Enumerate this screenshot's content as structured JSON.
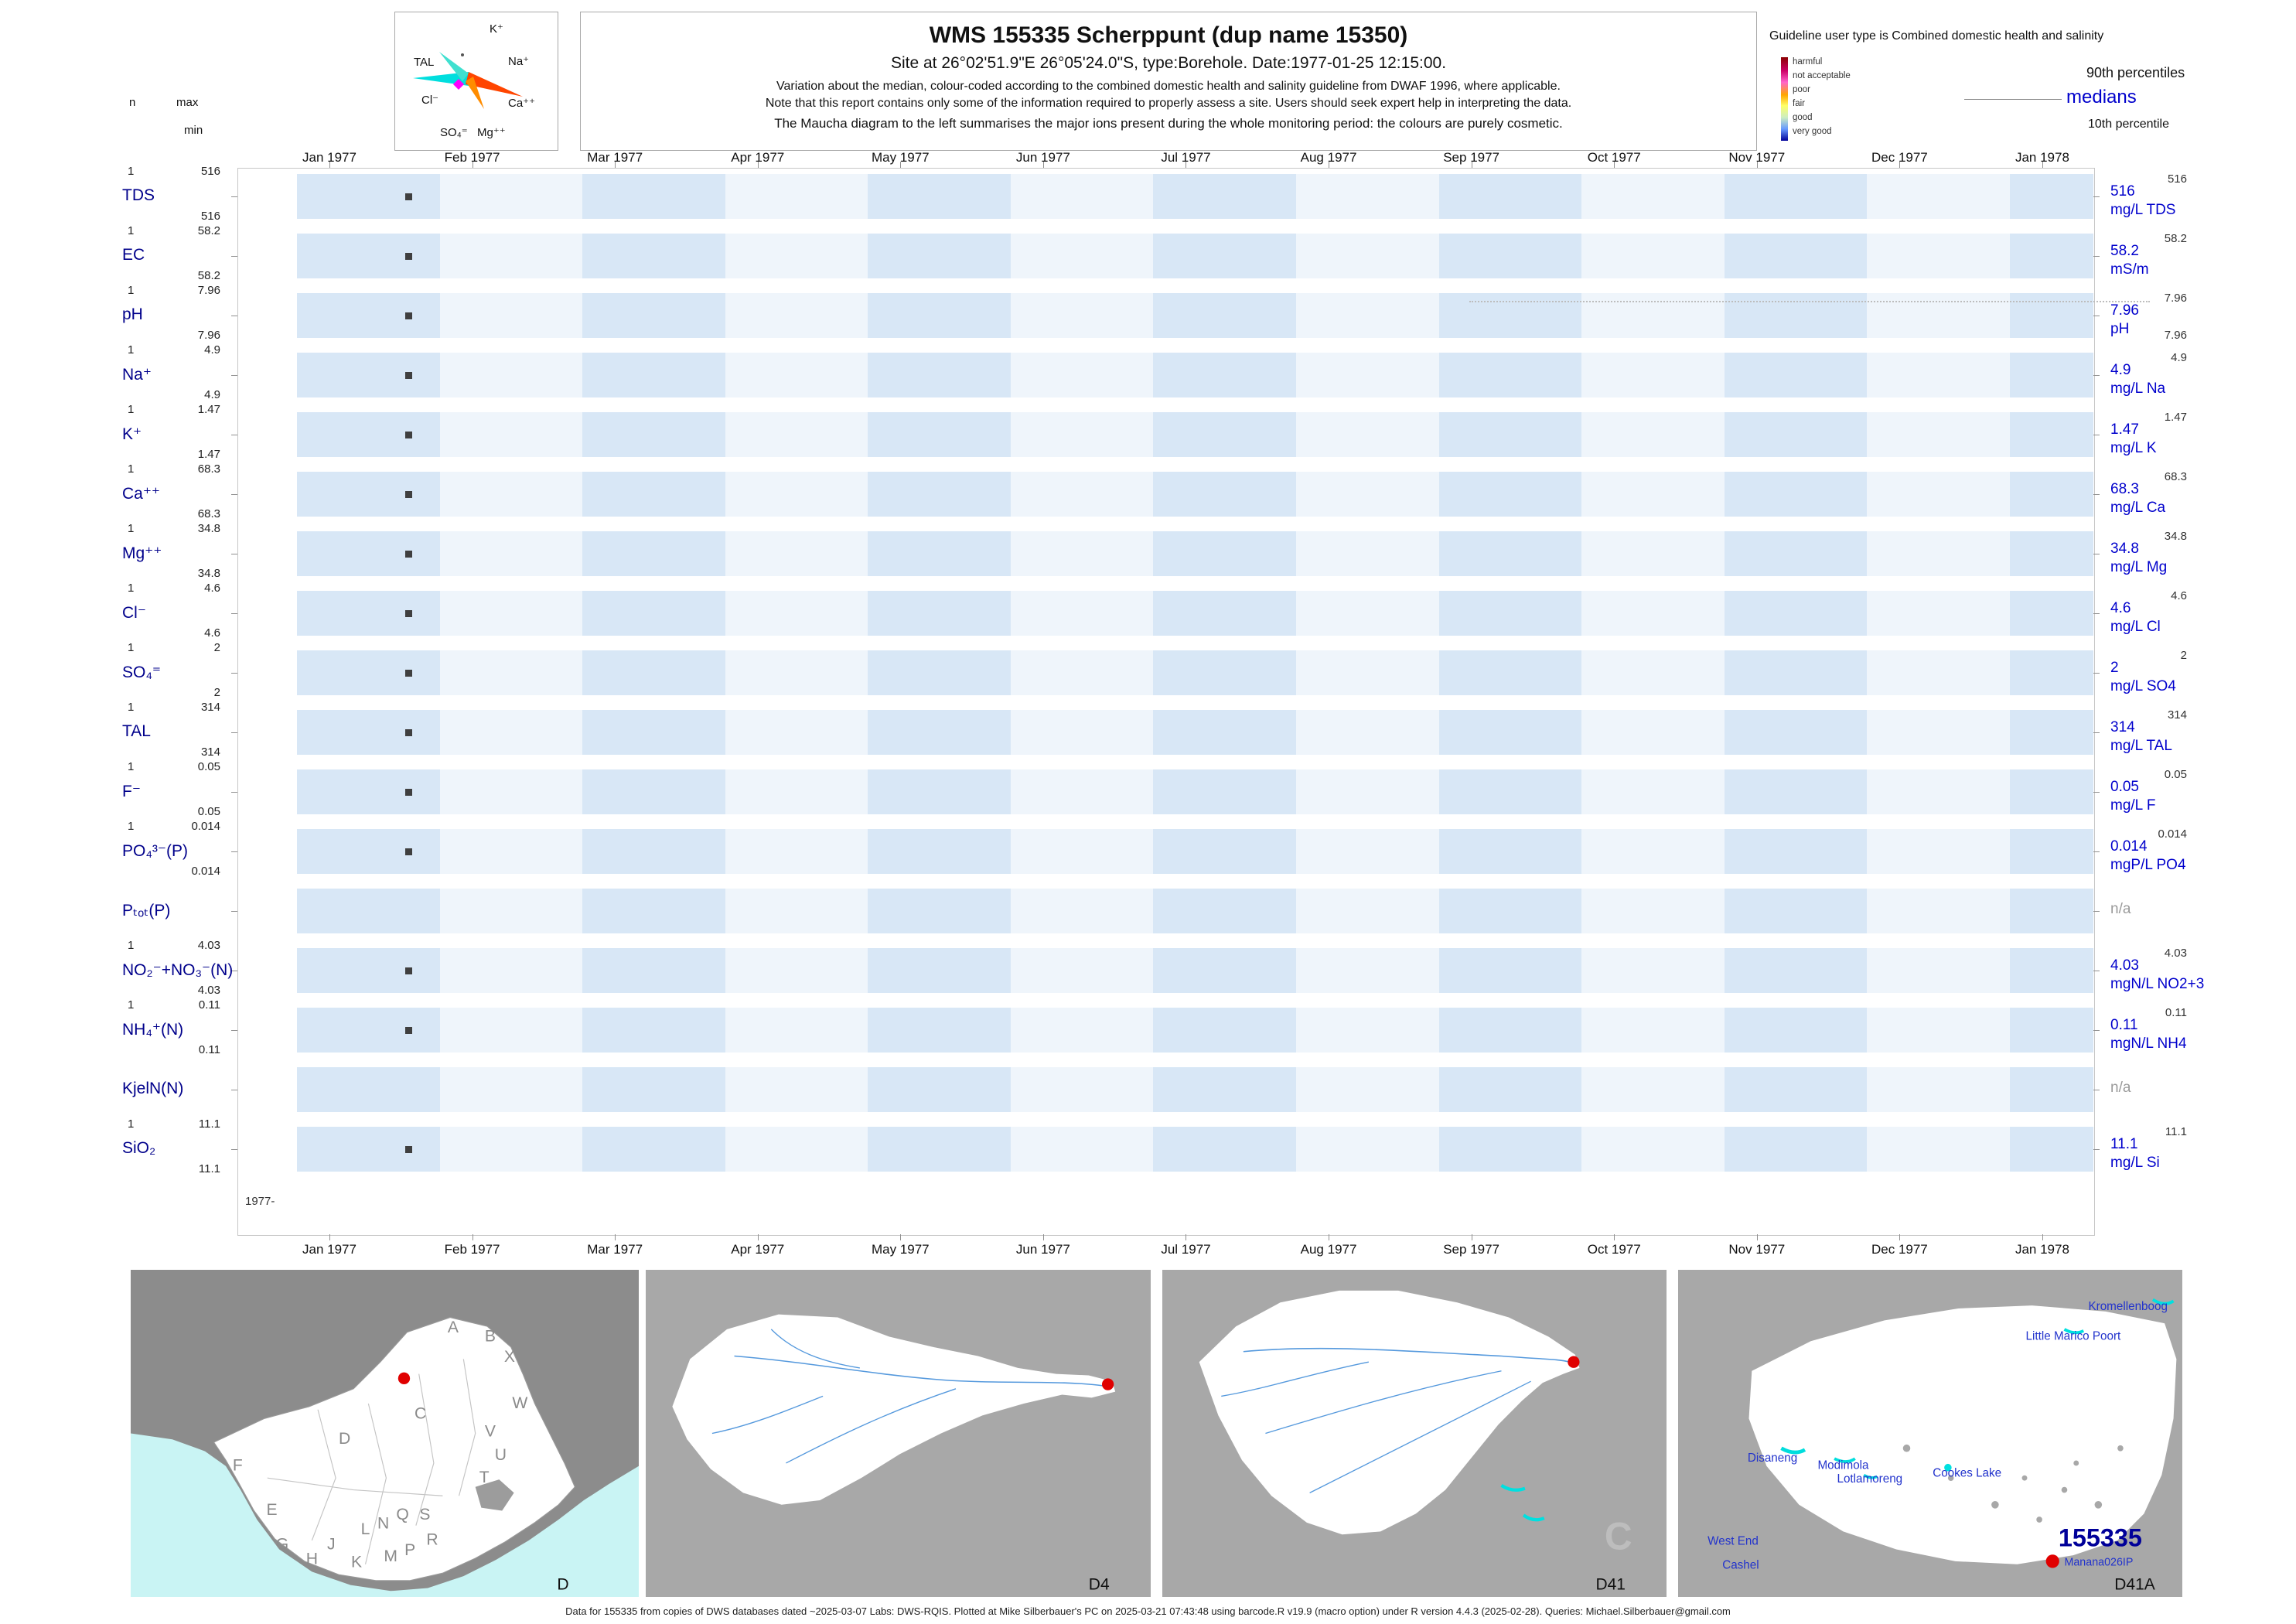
{
  "header": {
    "left_legend": {
      "n": "n",
      "max": "max",
      "min": "min"
    },
    "maucha": {
      "ions": {
        "k": "K⁺",
        "na": "Na⁺",
        "ca": "Ca⁺⁺",
        "mg": "Mg⁺⁺",
        "so4": "SO₄⁼",
        "cl": "Cl⁻",
        "tal": "TAL"
      }
    },
    "title": "WMS 155335  Scherppunt (dup name 15350)",
    "subtitle": "Site at 26°02'51.9\"E 26°05'24.0\"S, type:Borehole. Date:1977-01-25 12:15:00.",
    "note1": "Variation about the median,  colour-coded according to the combined domestic health and salinity guideline from DWAF 1996, where applicable.",
    "note2": "Note that this report contains only some of the information required to properly assess a site. Users should seek expert help in interpreting the data.",
    "note3": "The Maucha diagram to the left summarises the major ions present during the whole monitoring period: the colours are purely cosmetic.",
    "guideline_title": "Guideline user type is Combined domestic health and salinity",
    "guideline_classes": [
      "harmful",
      "not acceptable",
      "poor",
      "fair",
      "good",
      "very good"
    ],
    "p90_label": "90th percentiles",
    "median_label": "medians",
    "p10_label": "10th percentile"
  },
  "axis": {
    "months": [
      "Jan 1977",
      "Feb 1977",
      "Mar 1977",
      "Apr 1977",
      "May 1977",
      "Jun 1977",
      "Jul 1977",
      "Aug 1977",
      "Sep 1977",
      "Oct 1977",
      "Nov 1977",
      "Dec 1977",
      "Jan 1978"
    ],
    "origin_label": "1977-"
  },
  "chart_data": {
    "type": "table",
    "title": "WMS 155335 Scherppunt (dup name 15350)",
    "site": "26°02'51.9\"E 26°05'24.0\"S, type: Borehole",
    "sample_date": "1977-01-25 12:15:00",
    "x_range": [
      "Jan 1977",
      "Jan 1978"
    ],
    "sample_x": "1977-01-25",
    "n_samples": 1,
    "rows": [
      {
        "name": "TDS",
        "n": 1,
        "max": 516,
        "min": 516,
        "median": 516,
        "p90": 516,
        "p10": null,
        "unit": "mg/L TDS",
        "has_data": true,
        "na_label": null
      },
      {
        "name": "EC",
        "n": 1,
        "max": 58.2,
        "min": 58.2,
        "median": 58.2,
        "p90": 58.2,
        "p10": null,
        "unit": "mS/m",
        "has_data": true,
        "na_label": null
      },
      {
        "name": "pH",
        "n": 1,
        "max": 7.96,
        "min": 7.96,
        "median": 7.96,
        "p90": 7.96,
        "p10": 7.96,
        "unit": "pH",
        "has_data": true,
        "na_label": null
      },
      {
        "name": "Na⁺",
        "n": 1,
        "max": 4.9,
        "min": 4.9,
        "median": 4.9,
        "p90": 4.9,
        "p10": null,
        "unit": "mg/L Na",
        "has_data": true,
        "na_label": null
      },
      {
        "name": "K⁺",
        "n": 1,
        "max": 1.47,
        "min": 1.47,
        "median": 1.47,
        "p90": 1.47,
        "p10": null,
        "unit": "mg/L K",
        "has_data": true,
        "na_label": null
      },
      {
        "name": "Ca⁺⁺",
        "n": 1,
        "max": 68.3,
        "min": 68.3,
        "median": 68.3,
        "p90": 68.3,
        "p10": null,
        "unit": "mg/L Ca",
        "has_data": true,
        "na_label": null
      },
      {
        "name": "Mg⁺⁺",
        "n": 1,
        "max": 34.8,
        "min": 34.8,
        "median": 34.8,
        "p90": 34.8,
        "p10": null,
        "unit": "mg/L Mg",
        "has_data": true,
        "na_label": null
      },
      {
        "name": "Cl⁻",
        "n": 1,
        "max": 4.6,
        "min": 4.6,
        "median": 4.6,
        "p90": 4.6,
        "p10": null,
        "unit": "mg/L Cl",
        "has_data": true,
        "na_label": null
      },
      {
        "name": "SO₄⁼",
        "n": 1,
        "max": 2,
        "min": 2,
        "median": 2,
        "p90": 2,
        "p10": null,
        "unit": "mg/L SO4",
        "has_data": true,
        "na_label": null
      },
      {
        "name": "TAL",
        "n": 1,
        "max": 314,
        "min": 314,
        "median": 314,
        "p90": 314,
        "p10": null,
        "unit": "mg/L TAL",
        "has_data": true,
        "na_label": null
      },
      {
        "name": "F⁻",
        "n": 1,
        "max": 0.05,
        "min": 0.05,
        "median": 0.05,
        "p90": 0.05,
        "p10": null,
        "unit": "mg/L F",
        "has_data": true,
        "na_label": null
      },
      {
        "name": "PO₄³⁻(P)",
        "n": 1,
        "max": 0.014,
        "min": 0.014,
        "median": 0.014,
        "p90": 0.014,
        "p10": null,
        "unit": "mgP/L PO4",
        "has_data": true,
        "na_label": null
      },
      {
        "name": "Pₜₒₜ(P)",
        "n": null,
        "max": null,
        "min": null,
        "median": null,
        "p90": null,
        "p10": null,
        "unit": null,
        "has_data": false,
        "na_label": "n/a"
      },
      {
        "name": "NO₂⁻+NO₃⁻(N)",
        "n": 1,
        "max": 4.03,
        "min": 4.03,
        "median": 4.03,
        "p90": 4.03,
        "p10": null,
        "unit": "mgN/L NO2+3",
        "has_data": true,
        "na_label": null
      },
      {
        "name": "NH₄⁺(N)",
        "n": 1,
        "max": 0.11,
        "min": 0.11,
        "median": 0.11,
        "p90": 0.11,
        "p10": null,
        "unit": "mgN/L NH4",
        "has_data": true,
        "na_label": null
      },
      {
        "name": "KjelN(N)",
        "n": null,
        "max": null,
        "min": null,
        "median": null,
        "p90": null,
        "p10": null,
        "unit": null,
        "has_data": false,
        "na_label": "n/a"
      },
      {
        "name": "SiO₂",
        "n": 1,
        "max": 11.1,
        "min": 11.1,
        "median": 11.1,
        "p90": 11.1,
        "p10": null,
        "unit": "mg/L Si",
        "has_data": true,
        "na_label": null
      }
    ]
  },
  "maps": [
    {
      "name": "south-africa-drainage-regions",
      "letters": [
        "A",
        "B",
        "X",
        "W",
        "C",
        "V",
        "U",
        "T",
        "D",
        "F",
        "E",
        "S",
        "Q",
        "R",
        "G",
        "H",
        "J",
        "K",
        "L",
        "N",
        "M",
        "P"
      ],
      "label": "D"
    },
    {
      "name": "drainage-region-d4",
      "label": "D4"
    },
    {
      "name": "drainage-region-d41",
      "label": "D41",
      "watermark": "C"
    },
    {
      "name": "quaternary-catchment-d41a",
      "label": "D41A",
      "places": [
        "Kromellenboog",
        "Little Marico Poort",
        "Disaneng",
        "Modimola",
        "Lotlamoreng",
        "Cookes Lake",
        "West End",
        "Cashel"
      ],
      "station_id": "155335",
      "station_code": "Manana026IP"
    }
  ],
  "footer": "Data for 155335 from copies of DWS databases dated ~2025-03-07 Labs: DWS-RQIS. Plotted at Mike Silberbauer's PC on 2025-03-21 07:43:48 using barcode.R v19.9 (macro option) under R version 4.4.3 (2025-02-28). Queries: Michael.Silberbauer@gmail.com",
  "colors": {
    "accent_navy": "#00008b",
    "median_blue": "#0000cc",
    "stripe_a": "#d8e7f6",
    "stripe_b": "#eff5fb",
    "marker": "#3f3f3f",
    "red_dot": "#e00000",
    "na_gray": "#9a9a9a"
  }
}
